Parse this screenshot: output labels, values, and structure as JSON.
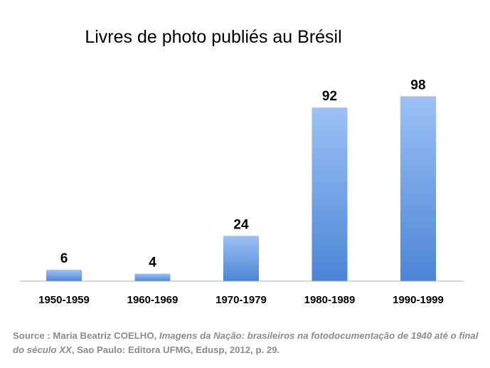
{
  "chart_data": {
    "type": "bar",
    "title": "Livres de photo publiés au Brésil",
    "categories": [
      "1950-1959",
      "1960-1969",
      "1970-1979",
      "1980-1989",
      "1990-1999"
    ],
    "values": [
      6,
      4,
      24,
      92,
      98
    ],
    "data_labels": [
      "6",
      "4",
      "24",
      "92",
      "98"
    ],
    "ylim": [
      0,
      100
    ],
    "grid": false,
    "legend": "none",
    "bar_color_top": "#9cc1f6",
    "bar_color_bottom": "#4c85d6"
  },
  "source": {
    "prefix": "Source : Maria Beatriz COELHO, ",
    "title_italic": "Imagens da Nação: brasileiros na fotodocumentação de 1940 até o final do século XX",
    "suffix": ", Sao Paulo: Editora UFMG, Edusp, 2012, p. 29."
  }
}
